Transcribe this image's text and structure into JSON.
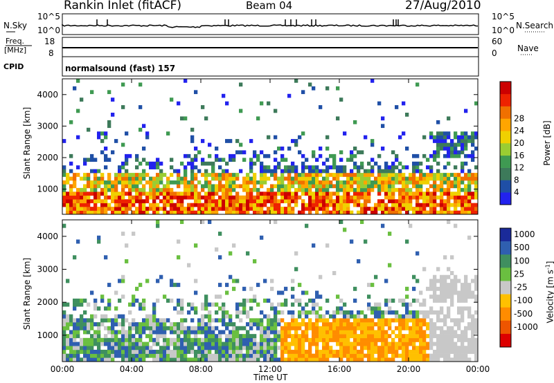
{
  "header": {
    "station": "Rankin Inlet (fitACF)",
    "beam": "Beam 04",
    "date": "27/Aug/2010"
  },
  "strip_labels": {
    "nsky": "N.Sky",
    "nsky_top": "10^5",
    "nsky_bottom": "10^0",
    "nsearch": "N.Search",
    "nsearch_top": "10^5",
    "nsearch_bottom": "10^0",
    "freq": "Freq.",
    "freq_unit": "[MHz]",
    "freq_top": "18",
    "freq_bottom": "8",
    "nave": "Nave",
    "nave_top": "60",
    "nave_bottom": "0",
    "cpid": "CPID",
    "program": "normalsound (fast) 157"
  },
  "colors": {
    "power_scale": [
      "#2222ee",
      "#1f4fa6",
      "#3d7a5a",
      "#3f9a52",
      "#9acd32",
      "#f0d000",
      "#ffa500",
      "#f07000",
      "#ee2200",
      "#cc0000"
    ],
    "velocity_scale": [
      "#1a2a99",
      "#2f5fb0",
      "#3f8f5f",
      "#6abf40",
      "#c8c8c8",
      "#ffc000",
      "#ff8c00",
      "#ee5500",
      "#dd0000"
    ]
  },
  "chart_data": [
    {
      "type": "heatmap",
      "name": "power",
      "ylabel": "Slant Range [km]",
      "ylim": [
        200,
        4500
      ],
      "yticks": [
        "1000",
        "2000",
        "3000",
        "4000"
      ],
      "xticks": [
        "00:00",
        "04:00",
        "08:00",
        "12:00",
        "16:00",
        "20:00",
        "00:00"
      ],
      "colorbar_label": "Power [dB]",
      "colorbar_ticks": [
        "4",
        "8",
        "12",
        "16",
        "20",
        "24",
        "28"
      ]
    },
    {
      "type": "heatmap",
      "name": "velocity",
      "ylabel": "Slant Range [km]",
      "ylim": [
        200,
        4500
      ],
      "yticks": [
        "1000",
        "2000",
        "3000",
        "4000"
      ],
      "xticks": [
        "00:00",
        "04:00",
        "08:00",
        "12:00",
        "16:00",
        "20:00",
        "00:00"
      ],
      "xlabel": "Time UT",
      "colorbar_label": "Velocity [m s^-1]",
      "colorbar_ticks": [
        "1000",
        "500",
        "100",
        "25",
        "-25",
        "-100",
        "-500",
        "-1000"
      ]
    }
  ]
}
